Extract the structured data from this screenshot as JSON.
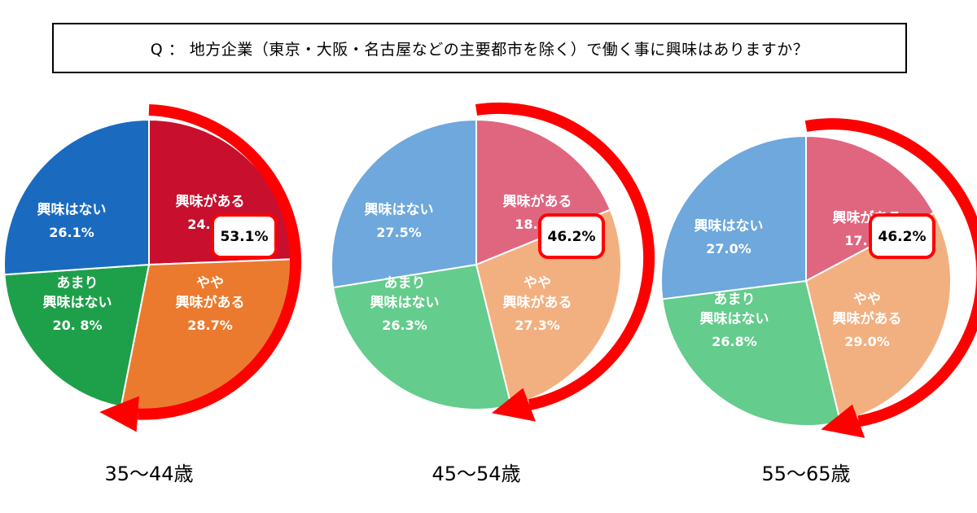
{
  "question": "Q ： 地方企業（東京・大阪・名古屋などの主要都市を除く）で働く事に興味はありますか？",
  "chart_data": [
    {
      "type": "pie",
      "title": "35～44歳",
      "slices": [
        {
          "label": "興味がある",
          "value": 24.4,
          "pct_label": "24.4%",
          "color": "#c8102e"
        },
        {
          "label": "やや\n興味がある",
          "value": 28.7,
          "pct_label": "28.7%",
          "color": "#ec7a2e"
        },
        {
          "label": "あまり\n興味はない",
          "value": 20.8,
          "pct_label": "20. 8%",
          "color": "#1ea04a"
        },
        {
          "label": "興味はない",
          "value": 26.1,
          "pct_label": "26.1%",
          "color": "#1a6bc0"
        }
      ],
      "highlight_total": "53.1%"
    },
    {
      "type": "pie",
      "title": "45～54歳",
      "slices": [
        {
          "label": "興味がある",
          "value": 18.8,
          "pct_label": "18.8%",
          "color": "#e06680"
        },
        {
          "label": "やや\n興味がある",
          "value": 27.3,
          "pct_label": "27.3%",
          "color": "#f2b080"
        },
        {
          "label": "あまり\n興味はない",
          "value": 26.3,
          "pct_label": "26.3%",
          "color": "#64cc8c"
        },
        {
          "label": "興味はない",
          "value": 27.5,
          "pct_label": "27.5%",
          "color": "#6ea8dc"
        }
      ],
      "highlight_total": "46.2%"
    },
    {
      "type": "pie",
      "title": "55～65歳",
      "slices": [
        {
          "label": "興味がある",
          "value": 17.2,
          "pct_label": "17.2%",
          "color": "#e06680"
        },
        {
          "label": "やや\n興味がある",
          "value": 29.0,
          "pct_label": "29.0%",
          "color": "#f2b080"
        },
        {
          "label": "あまり\n興味はない",
          "value": 26.8,
          "pct_label": "26.8%",
          "color": "#64cc8c"
        },
        {
          "label": "興味はない",
          "value": 27.0,
          "pct_label": "27.0%",
          "color": "#6ea8dc"
        }
      ],
      "highlight_total": "46.2%"
    }
  ]
}
